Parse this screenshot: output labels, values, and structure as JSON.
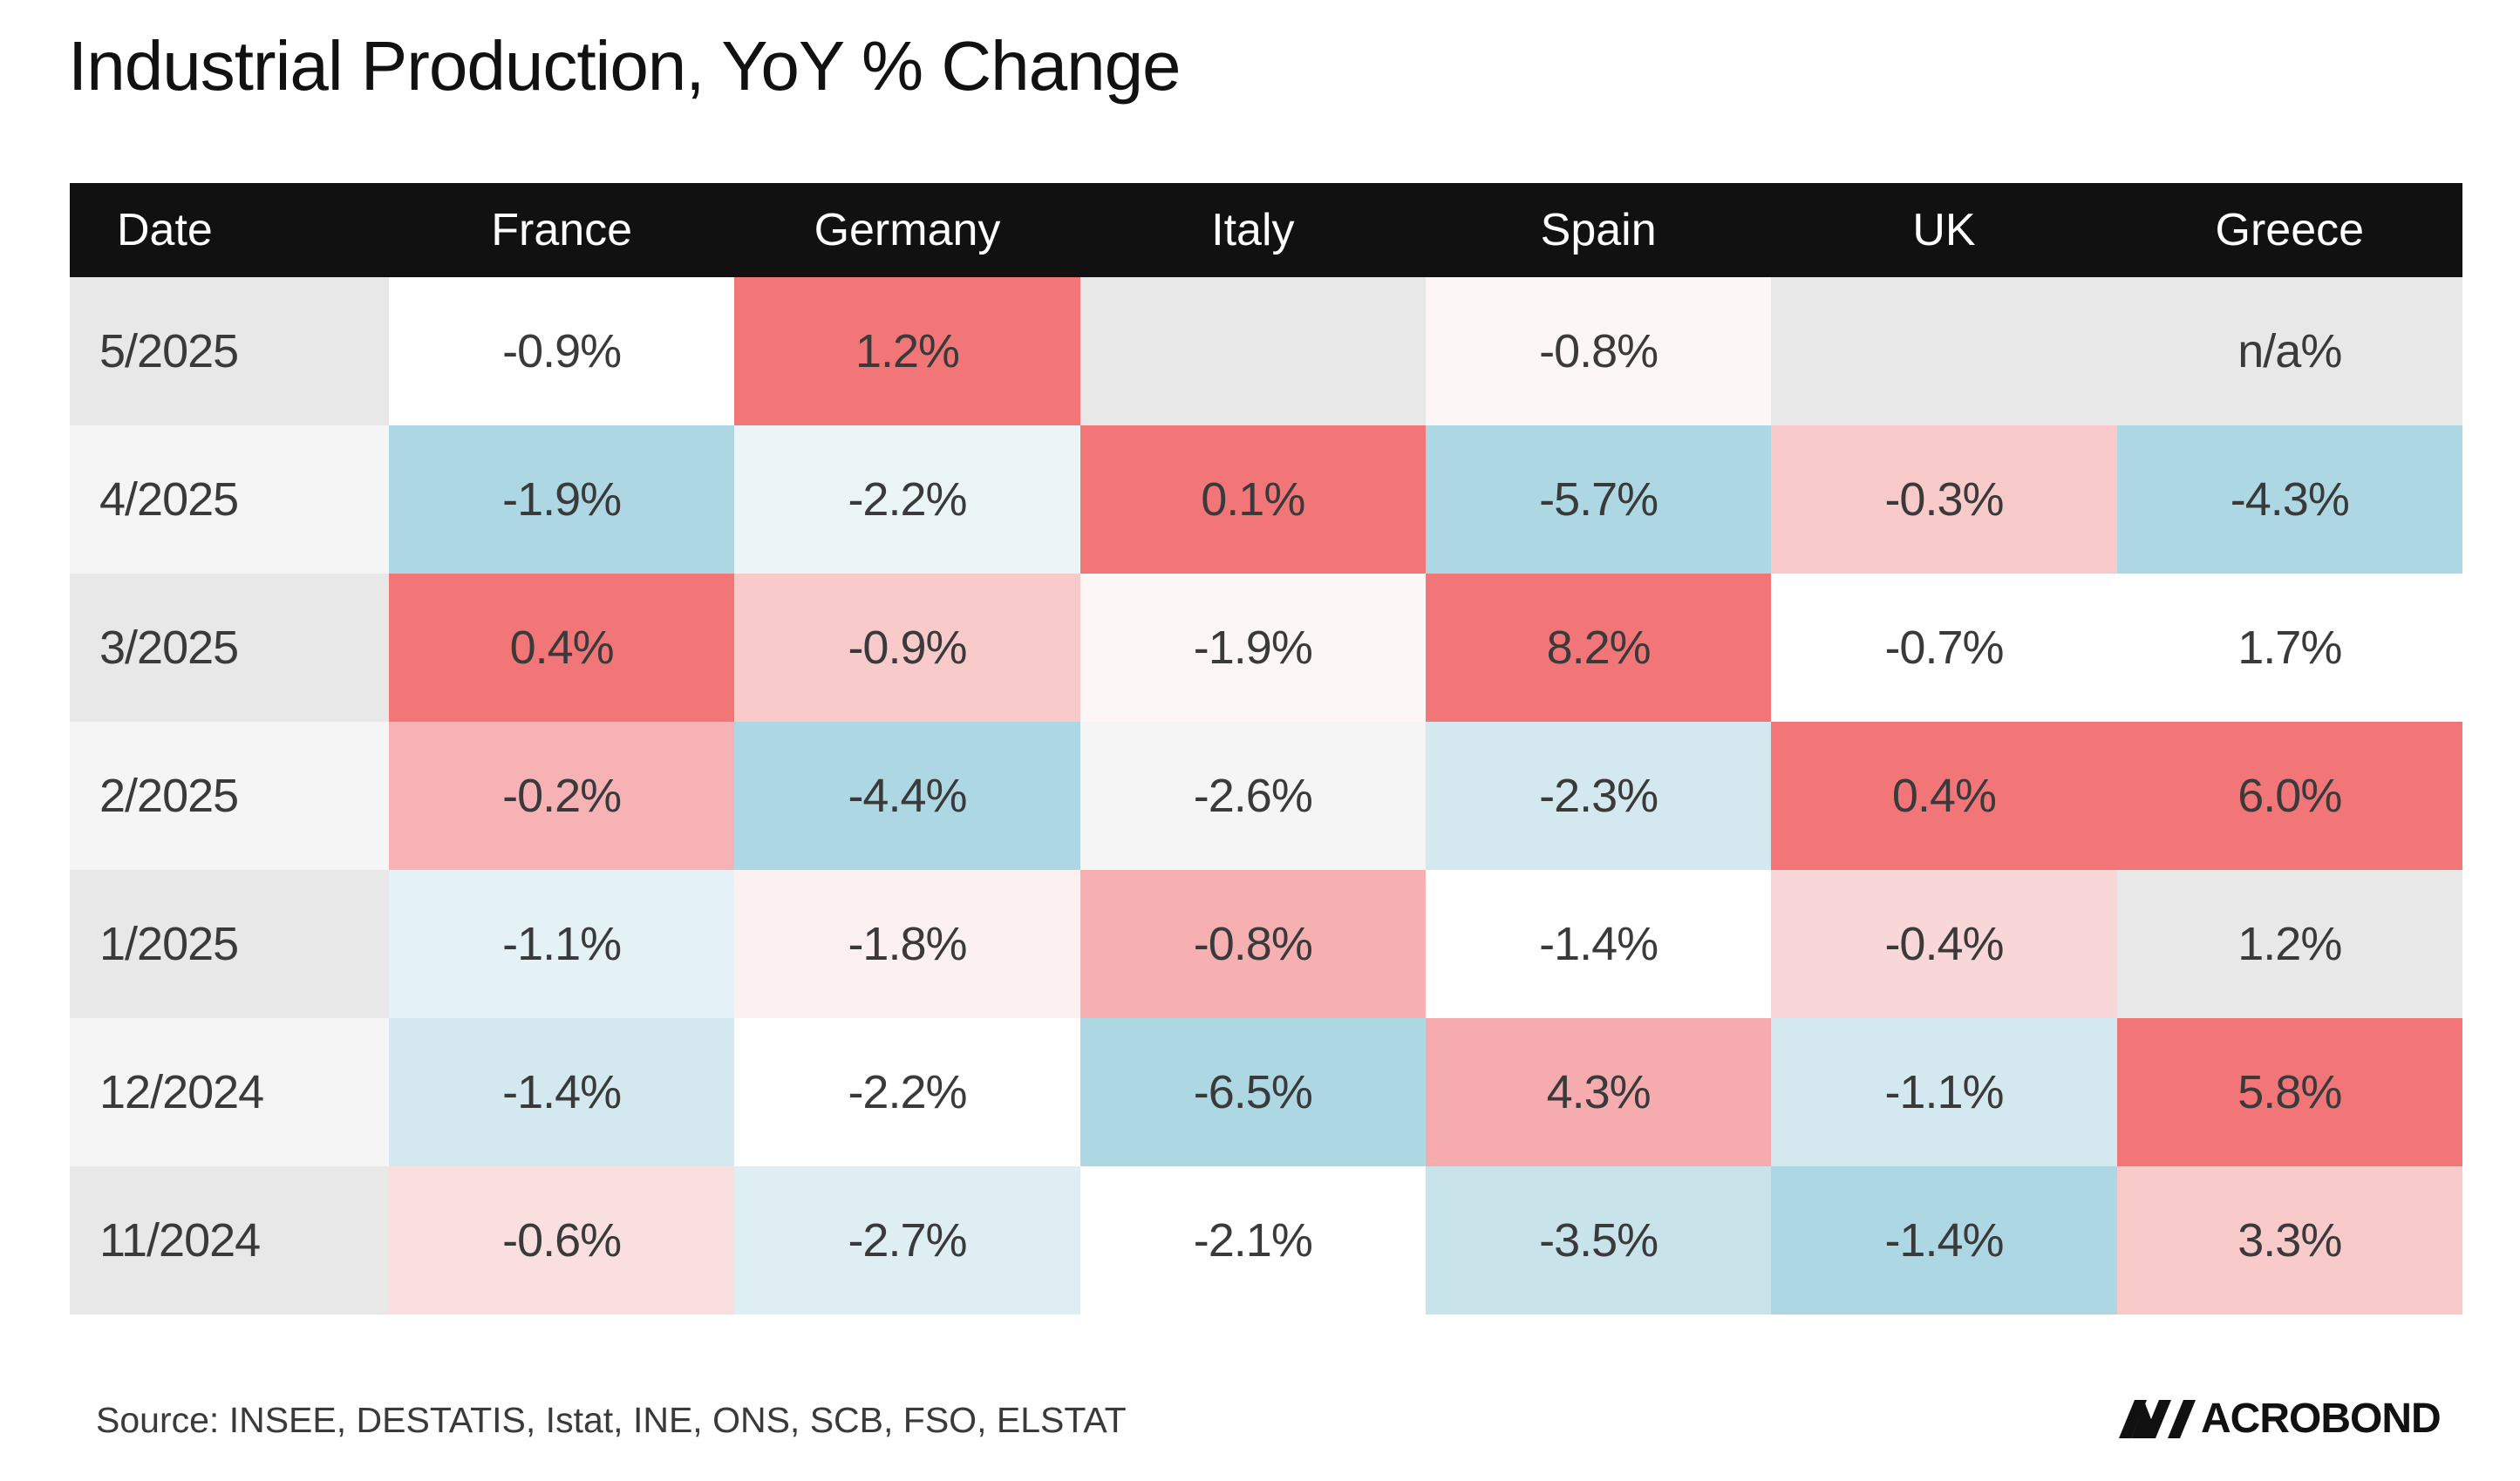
{
  "title": "Industrial Production, YoY % Change",
  "source": "Source: INSEE, DESTATIS, Istat, INE, ONS, SCB, FSO, ELSTAT",
  "logo_text": "ACROBOND",
  "logo_full": "MACROBOND",
  "colors": {
    "header_bg": "#111111",
    "header_text": "#ffffff",
    "date_odd": "#e8e8e8",
    "date_even": "#f5f5f5"
  },
  "chart_data": {
    "type": "table",
    "title": "Industrial Production, YoY % Change",
    "columns": [
      "Date",
      "France",
      "Germany",
      "Italy",
      "Spain",
      "UK",
      "Greece"
    ],
    "rows": [
      {
        "date": "5/2025",
        "cells": [
          {
            "text": "-0.9%",
            "color": "#ffffff"
          },
          {
            "text": "1.2%",
            "color": "#f27578"
          },
          {
            "text": "",
            "color": "#e8e8e8"
          },
          {
            "text": "-0.8%",
            "color": "#fdf6f6"
          },
          {
            "text": "",
            "color": "#e8e8e8"
          },
          {
            "text": "n/a%",
            "color": "#e8e8e8"
          }
        ]
      },
      {
        "date": "4/2025",
        "cells": [
          {
            "text": "-1.9%",
            "color": "#add8e3"
          },
          {
            "text": "-2.2%",
            "color": "#ebf4f7"
          },
          {
            "text": "0.1%",
            "color": "#f27578"
          },
          {
            "text": "-5.7%",
            "color": "#add8e3"
          },
          {
            "text": "-0.3%",
            "color": "#f8caca"
          },
          {
            "text": "-4.3%",
            "color": "#add8e3"
          }
        ]
      },
      {
        "date": "3/2025",
        "cells": [
          {
            "text": "0.4%",
            "color": "#f27578"
          },
          {
            "text": "-0.9%",
            "color": "#f8caca"
          },
          {
            "text": "-1.9%",
            "color": "#fdf6f6"
          },
          {
            "text": "8.2%",
            "color": "#f27578"
          },
          {
            "text": "-0.7%",
            "color": "#ffffff"
          },
          {
            "text": "1.7%",
            "color": "#ffffff"
          }
        ]
      },
      {
        "date": "2/2025",
        "cells": [
          {
            "text": "-0.2%",
            "color": "#f6b2b4"
          },
          {
            "text": "-4.4%",
            "color": "#add8e3"
          },
          {
            "text": "-2.6%",
            "color": "#f5f5f5"
          },
          {
            "text": "-2.3%",
            "color": "#d3e8ef"
          },
          {
            "text": "0.4%",
            "color": "#f27578"
          },
          {
            "text": "6.0%",
            "color": "#f27578"
          }
        ]
      },
      {
        "date": "1/2025",
        "cells": [
          {
            "text": "-1.1%",
            "color": "#e4f1f5"
          },
          {
            "text": "-1.8%",
            "color": "#fcf0f0"
          },
          {
            "text": "-0.8%",
            "color": "#f6b0b1"
          },
          {
            "text": "-1.4%",
            "color": "#ffffff"
          },
          {
            "text": "-0.4%",
            "color": "#f9d6d7"
          },
          {
            "text": "1.2%",
            "color": "#e8e8e8"
          }
        ]
      },
      {
        "date": "12/2024",
        "cells": [
          {
            "text": "-1.4%",
            "color": "#d4e9ef"
          },
          {
            "text": "-2.2%",
            "color": "#ffffff"
          },
          {
            "text": "-6.5%",
            "color": "#add8e3"
          },
          {
            "text": "4.3%",
            "color": "#f6acae"
          },
          {
            "text": "-1.1%",
            "color": "#d3e8ef"
          },
          {
            "text": "5.8%",
            "color": "#f27578"
          }
        ]
      },
      {
        "date": "11/2024",
        "cells": [
          {
            "text": "-0.6%",
            "color": "#fadfe0"
          },
          {
            "text": "-2.7%",
            "color": "#deeef3"
          },
          {
            "text": "-2.1%",
            "color": "#ffffff"
          },
          {
            "text": "-3.5%",
            "color": "#c9e3eb"
          },
          {
            "text": "-1.4%",
            "color": "#add8e3"
          },
          {
            "text": "3.3%",
            "color": "#f8caca"
          }
        ]
      }
    ]
  }
}
